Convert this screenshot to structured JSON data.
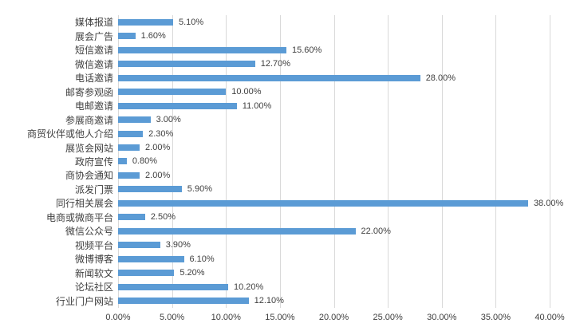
{
  "chart_data": {
    "type": "bar",
    "orientation": "horizontal",
    "title": "",
    "xlabel": "",
    "ylabel": "",
    "grid": true,
    "legend": false,
    "xlim": [
      0,
      40
    ],
    "categories": [
      "媒体报道",
      "展会广告",
      "短信邀请",
      "微信邀请",
      "电话邀请",
      "邮寄参观函",
      "电邮邀请",
      "参展商邀请",
      "商贸伙伴或他人介绍",
      "展览会网站",
      "政府宣传",
      "商协会通知",
      "派发门票",
      "同行相关展会",
      "电商或微商平台",
      "微信公众号",
      "视频平台",
      "微博博客",
      "新闻软文",
      "论坛社区",
      "行业门户网站"
    ],
    "values": [
      5.1,
      1.6,
      15.6,
      12.7,
      28.0,
      10.0,
      11.0,
      3.0,
      2.3,
      2.0,
      0.8,
      2.0,
      5.9,
      38.0,
      2.5,
      22.0,
      3.9,
      6.1,
      5.2,
      10.2,
      12.1
    ],
    "data_labels": [
      "5.10%",
      "1.60%",
      "15.60%",
      "12.70%",
      "28.00%",
      "10.00%",
      "11.00%",
      "3.00%",
      "2.30%",
      "2.00%",
      "0.80%",
      "2.00%",
      "5.90%",
      "38.00%",
      "2.50%",
      "22.00%",
      "3.90%",
      "6.10%",
      "5.20%",
      "10.20%",
      "12.10%"
    ],
    "x_ticks": [
      "0.00%",
      "5.00%",
      "10.00%",
      "15.00%",
      "20.00%",
      "25.00%",
      "30.00%",
      "35.00%",
      "40.00%"
    ],
    "bar_color": "#5B9BD5",
    "gridline_color": "#D9D9D9",
    "text_color": "#404040"
  }
}
